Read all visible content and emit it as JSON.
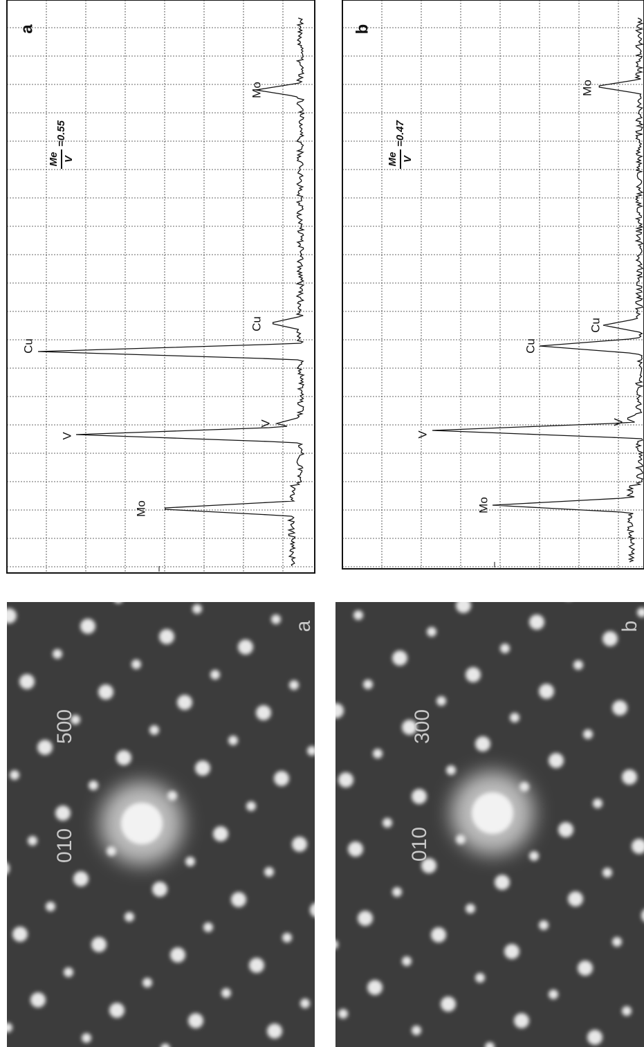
{
  "panels": [
    {
      "label": "a",
      "ratio": {
        "numerator": "Me",
        "denominator": "V",
        "value": "=0.55"
      },
      "peaks": [
        "Mo",
        "V",
        "Cu",
        "Cu",
        "V",
        "Mo"
      ]
    },
    {
      "label": "b",
      "ratio": {
        "numerator": "Me",
        "denominator": "V",
        "value": "=0.47"
      },
      "peaks": [
        "Mo",
        "V",
        "Cu",
        "Cu",
        "V",
        "Mo"
      ]
    }
  ],
  "patterns": [
    {
      "label": "a",
      "indices": [
        "500",
        "010"
      ]
    },
    {
      "label": "b",
      "indices": [
        "300",
        "010"
      ]
    }
  ]
}
